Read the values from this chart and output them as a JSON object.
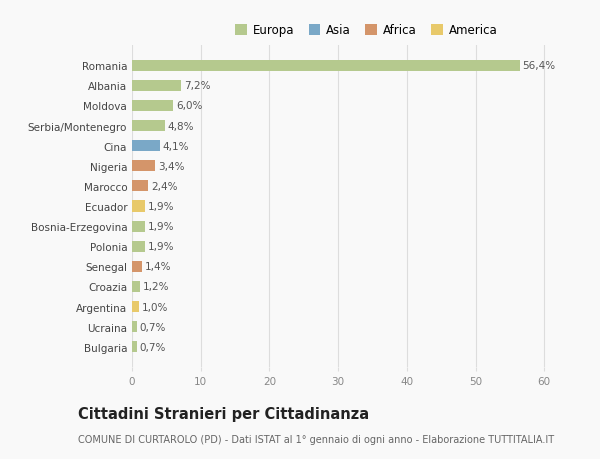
{
  "categories": [
    "Romania",
    "Albania",
    "Moldova",
    "Serbia/Montenegro",
    "Cina",
    "Nigeria",
    "Marocco",
    "Ecuador",
    "Bosnia-Erzegovina",
    "Polonia",
    "Senegal",
    "Croazia",
    "Argentina",
    "Ucraina",
    "Bulgaria"
  ],
  "values": [
    56.4,
    7.2,
    6.0,
    4.8,
    4.1,
    3.4,
    2.4,
    1.9,
    1.9,
    1.9,
    1.4,
    1.2,
    1.0,
    0.7,
    0.7
  ],
  "labels": [
    "56,4%",
    "7,2%",
    "6,0%",
    "4,8%",
    "4,1%",
    "3,4%",
    "2,4%",
    "1,9%",
    "1,9%",
    "1,9%",
    "1,4%",
    "1,2%",
    "1,0%",
    "0,7%",
    "0,7%"
  ],
  "colors": [
    "#b5c98e",
    "#b5c98e",
    "#b5c98e",
    "#b5c98e",
    "#7aa8c7",
    "#d4956a",
    "#d4956a",
    "#e8c96a",
    "#b5c98e",
    "#b5c98e",
    "#d4956a",
    "#b5c98e",
    "#e8c96a",
    "#b5c98e",
    "#b5c98e"
  ],
  "legend": [
    {
      "label": "Europa",
      "color": "#b5c98e"
    },
    {
      "label": "Asia",
      "color": "#7aa8c7"
    },
    {
      "label": "Africa",
      "color": "#d4956a"
    },
    {
      "label": "America",
      "color": "#e8c96a"
    }
  ],
  "xlim": [
    0,
    62
  ],
  "xticks": [
    0,
    10,
    20,
    30,
    40,
    50,
    60
  ],
  "title": "Cittadini Stranieri per Cittadinanza",
  "subtitle": "COMUNE DI CURTAROLO (PD) - Dati ISTAT al 1° gennaio di ogni anno - Elaborazione TUTTITALIA.IT",
  "bg_color": "#f9f9f9",
  "grid_color": "#dddddd",
  "bar_height": 0.55,
  "label_fontsize": 7.5,
  "tick_fontsize": 7.5,
  "title_fontsize": 10.5,
  "subtitle_fontsize": 7.0,
  "legend_fontsize": 8.5
}
